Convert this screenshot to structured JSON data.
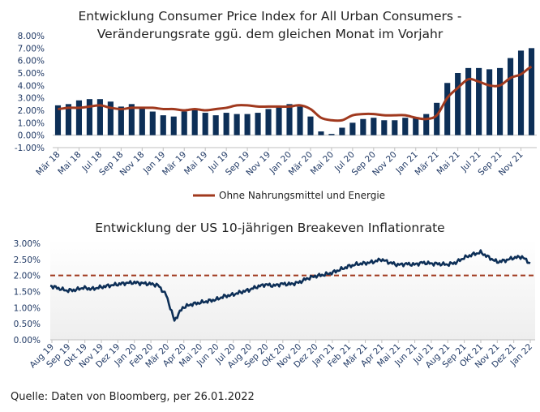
{
  "chart_data": [
    {
      "type": "bar",
      "title_line1": "Entwicklung Consumer Price Index for All Urban Consumers -",
      "title_line2": "Veränderungsrate ggü. dem gleichen Monat im Vorjahr",
      "ylim": [
        -0.01,
        0.08
      ],
      "yticks": [
        "-1.00%",
        "0.00%",
        "1.00%",
        "2.00%",
        "3.00%",
        "4.00%",
        "5.00%",
        "6.00%",
        "7.00%",
        "8.00%"
      ],
      "tick_labels": [
        "Mär 18",
        "Mai 18",
        "Jul 18",
        "Sep 18",
        "Nov 18",
        "Jan 19",
        "Mär 19",
        "Mai 19",
        "Jul 19",
        "Sep 19",
        "Nov 19",
        "Jan 20",
        "Mär 20",
        "Mai 20",
        "Jul 20",
        "Sep 20",
        "Nov 20",
        "Jan 21",
        "Mär 21",
        "Mai 21",
        "Jul 21",
        "Sep 21",
        "Nov 21"
      ],
      "bar_color": "#0d2f57",
      "line_color": "#a0391e",
      "values": [
        0.024,
        0.025,
        0.028,
        0.029,
        0.029,
        0.027,
        0.023,
        0.025,
        0.022,
        0.019,
        0.016,
        0.015,
        0.019,
        0.02,
        0.018,
        0.016,
        0.018,
        0.017,
        0.017,
        0.018,
        0.021,
        0.023,
        0.025,
        0.023,
        0.015,
        0.003,
        0.001,
        0.006,
        0.01,
        0.013,
        0.014,
        0.012,
        0.012,
        0.014,
        0.014,
        0.017,
        0.026,
        0.042,
        0.05,
        0.054,
        0.054,
        0.053,
        0.054,
        0.062,
        0.068,
        0.07
      ],
      "series": [
        {
          "name": "Ohne Nahrungsmittel und Energie",
          "values": [
            0.021,
            0.022,
            0.022,
            0.023,
            0.024,
            0.022,
            0.021,
            0.022,
            0.022,
            0.022,
            0.021,
            0.021,
            0.02,
            0.021,
            0.02,
            0.021,
            0.022,
            0.024,
            0.024,
            0.023,
            0.023,
            0.023,
            0.023,
            0.024,
            0.021,
            0.014,
            0.012,
            0.012,
            0.016,
            0.017,
            0.017,
            0.016,
            0.016,
            0.016,
            0.014,
            0.013,
            0.016,
            0.03,
            0.038,
            0.045,
            0.043,
            0.04,
            0.04,
            0.046,
            0.049,
            0.055
          ]
        }
      ]
    },
    {
      "type": "line",
      "title": "Entwicklung der US 10-jährigen Breakeven Inflationrate",
      "ylim": [
        0,
        0.03
      ],
      "yticks": [
        "0.00%",
        "0.50%",
        "1.00%",
        "1.50%",
        "2.00%",
        "2.50%",
        "3.00%"
      ],
      "tick_labels": [
        "Aug 19",
        "Sep 19",
        "Okt 19",
        "Nov 19",
        "Dez 19",
        "Jan 20",
        "Feb 20",
        "Mär 20",
        "Apr 20",
        "Mai 20",
        "Jun 20",
        "Jul 20",
        "Aug 20",
        "Sep 20",
        "Okt 20",
        "Nov 20",
        "Dez 20",
        "Jan 21",
        "Feb 21",
        "Mär 21",
        "Apr 21",
        "Mai 21",
        "Jun 21",
        "Jul 21",
        "Aug 21",
        "Sep 21",
        "Okt 21",
        "Nov 21",
        "Dez 21",
        "Jan 22"
      ],
      "reference_line": 0.02,
      "line_color": "#0d2f57",
      "reference_color": "#a0391e",
      "values": [
        0.0168,
        0.016,
        0.0153,
        0.0155,
        0.0162,
        0.0158,
        0.0163,
        0.0168,
        0.0172,
        0.0176,
        0.0178,
        0.0176,
        0.0174,
        0.017,
        0.014,
        0.006,
        0.01,
        0.011,
        0.0115,
        0.012,
        0.0125,
        0.0135,
        0.014,
        0.0148,
        0.0155,
        0.0165,
        0.0172,
        0.0168,
        0.0174,
        0.0173,
        0.0178,
        0.019,
        0.0198,
        0.0202,
        0.0208,
        0.0218,
        0.0228,
        0.0235,
        0.0238,
        0.0242,
        0.025,
        0.024,
        0.0233,
        0.0236,
        0.0234,
        0.024,
        0.0237,
        0.0236,
        0.0234,
        0.024,
        0.0255,
        0.0265,
        0.0272,
        0.0256,
        0.0242,
        0.0247,
        0.0255,
        0.0258,
        0.0238
      ]
    }
  ],
  "source": "Quelle: Daten von Bloomberg, per 26.01.2022"
}
